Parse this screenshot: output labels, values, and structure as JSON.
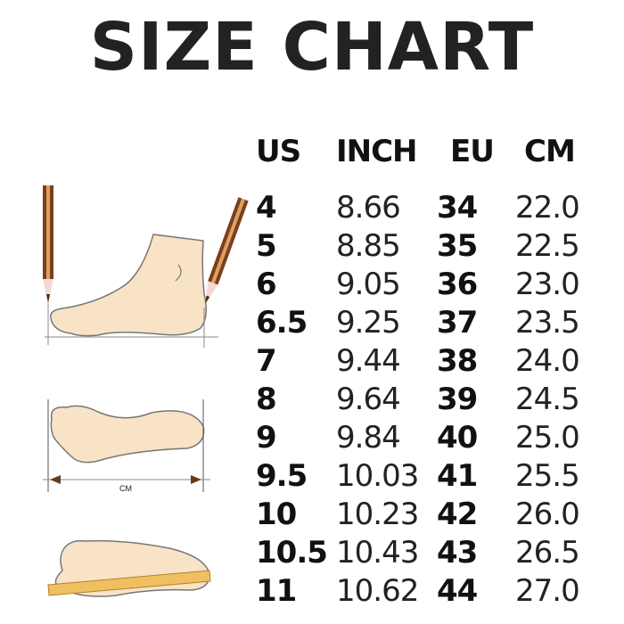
{
  "title": "SIZE CHART",
  "columns": [
    "US",
    "INCH",
    "EU",
    "CM"
  ],
  "rows": [
    [
      "4",
      "8.66",
      "34",
      "22.0"
    ],
    [
      "5",
      "8.85",
      "35",
      "22.5"
    ],
    [
      "6",
      "9.05",
      "36",
      "23.0"
    ],
    [
      "6.5",
      "9.25",
      "37",
      "23.5"
    ],
    [
      "7",
      "9.44",
      "38",
      "24.0"
    ],
    [
      "8",
      "9.64",
      "39",
      "24.5"
    ],
    [
      "9",
      "9.84",
      "40",
      "25.0"
    ],
    [
      "9.5",
      "10.03",
      "41",
      "25.5"
    ],
    [
      "10",
      "10.23",
      "42",
      "26.0"
    ],
    [
      "10.5",
      "10.43",
      "43",
      "26.5"
    ],
    [
      "11",
      "10.62",
      "44",
      "27.0"
    ]
  ],
  "illustration": {
    "measure_label": "CM",
    "skin_color": "#f8e3c6",
    "pencil_color": "#7a3f1c",
    "ruler_color": "#f0c060"
  }
}
